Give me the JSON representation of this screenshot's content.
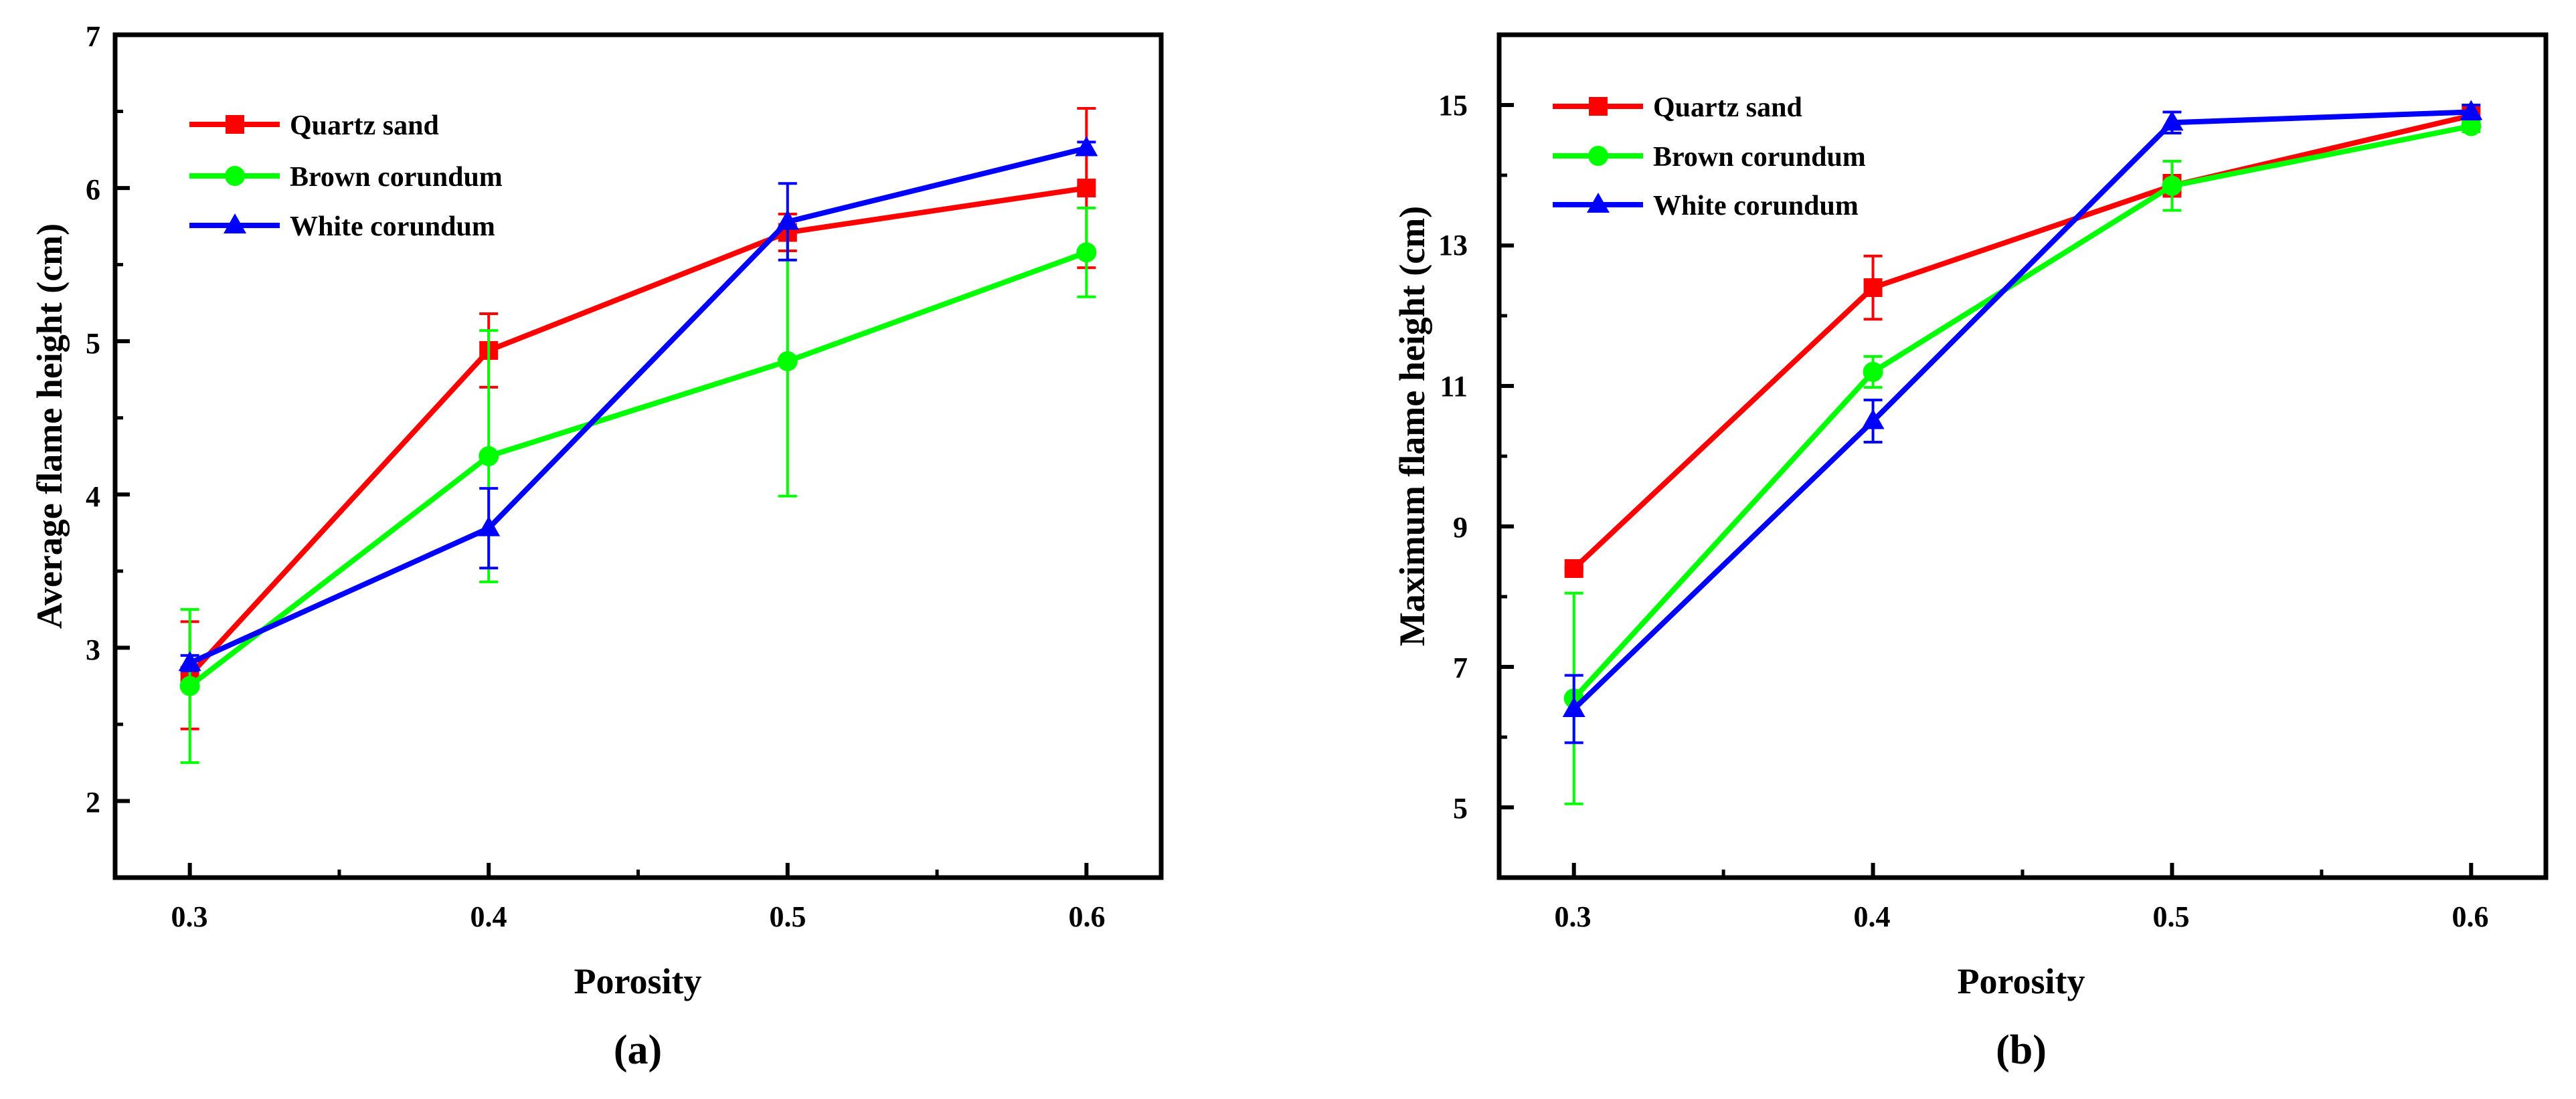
{
  "chart_data": [
    {
      "type": "line",
      "panel_label": "(a)",
      "xlabel": "Porosity",
      "ylabel": "Average flame height (cm)",
      "xlim": [
        0.275,
        0.625
      ],
      "ylim": [
        1.5,
        7
      ],
      "x_ticks": [
        "0.3",
        "0.4",
        "0.5",
        "0.6"
      ],
      "y_ticks": [
        "2",
        "3",
        "4",
        "5",
        "6",
        "7"
      ],
      "legend_position": "top-left",
      "x": [
        0.3,
        0.4,
        0.5,
        0.6
      ],
      "series": [
        {
          "name": "Quartz sand",
          "color": "#ff0000",
          "marker": "square",
          "values": [
            2.82,
            4.94,
            5.71,
            6.0
          ],
          "errors": [
            0.35,
            0.24,
            0.12,
            0.52
          ]
        },
        {
          "name": "Brown corundum",
          "color": "#00ff00",
          "marker": "circle",
          "values": [
            2.75,
            4.25,
            4.87,
            5.58
          ],
          "errors": [
            0.5,
            0.82,
            0.88,
            0.29
          ]
        },
        {
          "name": "White corundum",
          "color": "#0000ff",
          "marker": "triangle",
          "values": [
            2.9,
            3.78,
            5.78,
            6.26
          ],
          "errors": [
            0.05,
            0.26,
            0.25,
            0.04
          ]
        }
      ]
    },
    {
      "type": "line",
      "panel_label": "(b)",
      "xlabel": "Porosity",
      "ylabel": "Maximum flame height (cm)",
      "xlim": [
        0.275,
        0.625
      ],
      "ylim": [
        4,
        16
      ],
      "x_ticks": [
        "0.3",
        "0.4",
        "0.5",
        "0.6"
      ],
      "y_ticks": [
        "5",
        "7",
        "9",
        "11",
        "13",
        "15"
      ],
      "legend_position": "top-left",
      "x": [
        0.3,
        0.4,
        0.5,
        0.6
      ],
      "series": [
        {
          "name": "Quartz sand",
          "color": "#ff0000",
          "marker": "square",
          "values": [
            8.4,
            12.4,
            13.85,
            14.85
          ],
          "errors": [
            0.02,
            0.45,
            0.15,
            0.05
          ]
        },
        {
          "name": "Brown corundum",
          "color": "#00ff00",
          "marker": "circle",
          "values": [
            6.55,
            11.2,
            13.85,
            14.7
          ],
          "errors": [
            1.5,
            0.22,
            0.35,
            0.08
          ]
        },
        {
          "name": "White corundum",
          "color": "#0000ff",
          "marker": "triangle",
          "values": [
            6.4,
            10.5,
            14.75,
            14.9
          ],
          "errors": [
            0.48,
            0.3,
            0.15,
            0.1
          ]
        }
      ]
    }
  ]
}
